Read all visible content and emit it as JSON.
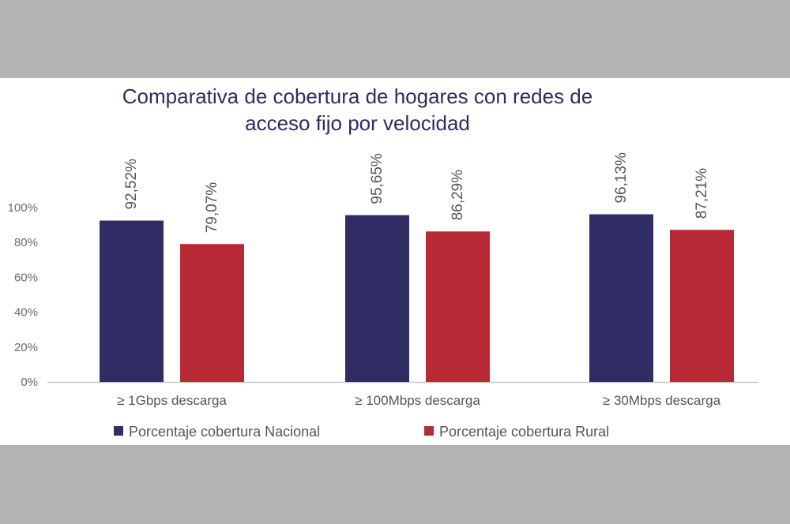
{
  "chart_data": {
    "type": "bar",
    "title_lines": [
      "Comparativa de cobertura de hogares con redes de",
      "acceso fijo por velocidad"
    ],
    "categories": [
      "≥ 1Gbps descarga",
      "≥ 100Mbps descarga",
      "≥ 30Mbps descarga"
    ],
    "series": [
      {
        "name": "Porcentaje cobertura Nacional",
        "values": [
          92.52,
          95.65,
          96.13
        ],
        "labels": [
          "92,52%",
          "95,65%",
          "96,13%"
        ],
        "color": "#2f2d63"
      },
      {
        "name": "Porcentaje cobertura Rural",
        "values": [
          79.07,
          86.29,
          87.21
        ],
        "labels": [
          "79,07%",
          "86,29%",
          "87,21%"
        ],
        "color": "#b72a35"
      }
    ],
    "ylim": [
      0,
      100
    ],
    "yticks": [
      "0%",
      "20%",
      "40%",
      "60%",
      "80%",
      "100%"
    ],
    "grid": false,
    "legend_position": "bottom"
  },
  "colors": {
    "background": "#ffffff",
    "frame": "#b3b3b3",
    "title": "#2f2c5e",
    "axis": "#c8c8c8"
  }
}
